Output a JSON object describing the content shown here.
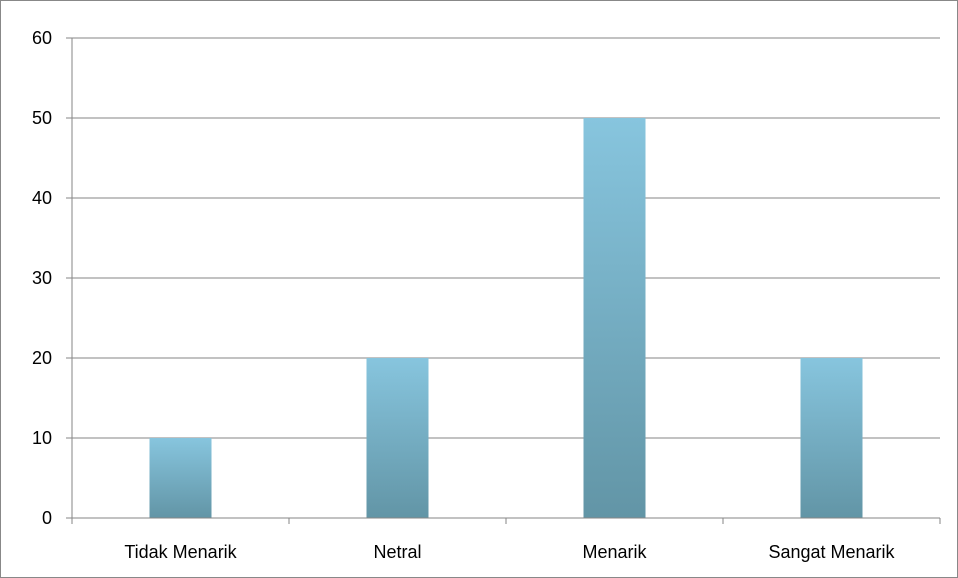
{
  "chart_data": {
    "type": "bar",
    "title": "",
    "xlabel": "",
    "ylabel": "",
    "categories": [
      "Tidak Menarik",
      "Netral",
      "Menarik",
      "Sangat Menarik"
    ],
    "values": [
      10,
      20,
      50,
      20
    ],
    "ylim": [
      0,
      60
    ],
    "yticks": [
      0,
      10,
      20,
      30,
      40,
      50,
      60
    ],
    "ytick_labels": [
      "0",
      "10",
      "20",
      "30",
      "40",
      "50",
      "60"
    ],
    "grid": true,
    "legend": "none",
    "colors": {
      "bar_top": "#87C5DE",
      "bar_bottom": "#6295A6",
      "grid": "#868686",
      "axis": "#868686",
      "frame": "#888888"
    }
  }
}
